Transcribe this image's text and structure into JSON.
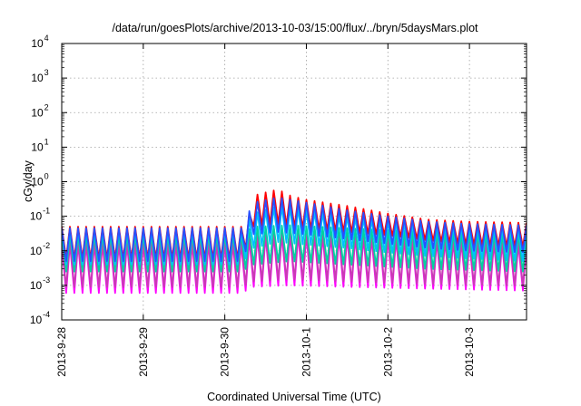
{
  "chart_data": {
    "type": "line",
    "title": "/data/run/goesPlots/archive/2013-10-03/15:00/flux/../bryn/5daysMars.plot",
    "xlabel": "Coordinated Universal Time (UTC)",
    "ylabel": "cGy/day",
    "y_scale": "log",
    "ylim": [
      0.0001,
      10000
    ],
    "xlim": [
      0,
      5.7
    ],
    "x_unit": "days since 2013-9-28 00:00",
    "y_ticks": [
      {
        "value": 0.0001,
        "base": "10",
        "exp": "-4"
      },
      {
        "value": 0.001,
        "base": "10",
        "exp": "-3"
      },
      {
        "value": 0.01,
        "base": "10",
        "exp": "-2"
      },
      {
        "value": 0.1,
        "base": "10",
        "exp": "-1"
      },
      {
        "value": 1,
        "base": "10",
        "exp": "0"
      },
      {
        "value": 10,
        "base": "10",
        "exp": "1"
      },
      {
        "value": 100,
        "base": "10",
        "exp": "2"
      },
      {
        "value": 1000,
        "base": "10",
        "exp": "3"
      },
      {
        "value": 10000,
        "base": "10",
        "exp": "4"
      }
    ],
    "x_ticks": [
      {
        "value": 0,
        "label": "2013-9-28"
      },
      {
        "value": 1,
        "label": "2013-9-29"
      },
      {
        "value": 2,
        "label": "2013-9-30"
      },
      {
        "value": 3,
        "label": "2013-10-1"
      },
      {
        "value": 4,
        "label": "2013-10-2"
      },
      {
        "value": 5,
        "label": "2013-10-3"
      }
    ],
    "grid": true,
    "legend": "none",
    "oscillation_period_days": 0.1,
    "series": [
      {
        "color": "#ff0000",
        "envelope": [
          [
            0,
            0.05,
            0.006
          ],
          [
            2.2,
            0.05,
            0.006
          ],
          [
            2.3,
            0.12,
            0.02
          ],
          [
            2.35,
            0.4,
            0.05
          ],
          [
            2.65,
            0.6,
            0.06
          ],
          [
            2.8,
            0.4,
            0.05
          ],
          [
            3.0,
            0.3,
            0.045
          ],
          [
            3.5,
            0.2,
            0.035
          ],
          [
            4.0,
            0.12,
            0.028
          ],
          [
            4.5,
            0.08,
            0.02
          ],
          [
            5.0,
            0.07,
            0.015
          ],
          [
            5.7,
            0.065,
            0.013
          ]
        ]
      },
      {
        "color": "#ff00ff",
        "envelope": [
          [
            0,
            0.016,
            0.0006
          ],
          [
            2.2,
            0.016,
            0.0006
          ],
          [
            2.35,
            0.025,
            0.0009
          ],
          [
            2.8,
            0.03,
            0.001
          ],
          [
            3.5,
            0.025,
            0.0009
          ],
          [
            4.5,
            0.02,
            0.0008
          ],
          [
            5.7,
            0.015,
            0.0007
          ]
        ]
      },
      {
        "color": "#c83cb4",
        "envelope": [
          [
            0,
            0.018,
            0.0009
          ],
          [
            2.2,
            0.018,
            0.0009
          ],
          [
            2.35,
            0.03,
            0.0013
          ],
          [
            2.8,
            0.035,
            0.0015
          ],
          [
            3.5,
            0.03,
            0.0013
          ],
          [
            4.5,
            0.022,
            0.0011
          ],
          [
            5.7,
            0.017,
            0.001
          ]
        ]
      },
      {
        "color": "#00d2a0",
        "envelope": [
          [
            0,
            0.03,
            0.0025
          ],
          [
            2.2,
            0.03,
            0.0025
          ],
          [
            2.35,
            0.05,
            0.004
          ],
          [
            2.8,
            0.055,
            0.005
          ],
          [
            3.5,
            0.045,
            0.004
          ],
          [
            4.5,
            0.035,
            0.003
          ],
          [
            5.7,
            0.03,
            0.0025
          ]
        ]
      },
      {
        "color": "#00bfff",
        "envelope": [
          [
            0,
            0.04,
            0.004
          ],
          [
            2.2,
            0.04,
            0.004
          ],
          [
            2.35,
            0.12,
            0.012
          ],
          [
            2.65,
            0.2,
            0.018
          ],
          [
            3.0,
            0.15,
            0.015
          ],
          [
            3.5,
            0.1,
            0.012
          ],
          [
            4.0,
            0.07,
            0.009
          ],
          [
            4.5,
            0.055,
            0.007
          ],
          [
            5.0,
            0.05,
            0.006
          ],
          [
            5.7,
            0.045,
            0.005
          ]
        ]
      },
      {
        "color": "#2850ff",
        "envelope": [
          [
            0,
            0.045,
            0.005
          ],
          [
            2.2,
            0.045,
            0.005
          ],
          [
            2.35,
            0.25,
            0.03
          ],
          [
            2.65,
            0.35,
            0.035
          ],
          [
            3.0,
            0.25,
            0.03
          ],
          [
            3.5,
            0.15,
            0.022
          ],
          [
            4.0,
            0.1,
            0.016
          ],
          [
            4.5,
            0.07,
            0.012
          ],
          [
            5.0,
            0.06,
            0.01
          ],
          [
            5.7,
            0.055,
            0.009
          ]
        ]
      }
    ]
  }
}
